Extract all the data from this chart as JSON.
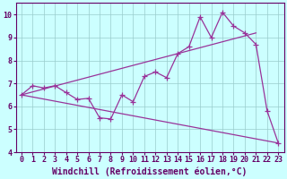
{
  "xlabel": "Windchill (Refroidissement éolien,°C)",
  "x_values": [
    0,
    1,
    2,
    3,
    4,
    5,
    6,
    7,
    8,
    9,
    10,
    11,
    12,
    13,
    14,
    15,
    16,
    17,
    18,
    19,
    20,
    21,
    22,
    23
  ],
  "line1_y": [
    6.5,
    6.9,
    6.8,
    6.9,
    6.6,
    6.3,
    6.35,
    5.5,
    5.45,
    6.5,
    6.2,
    7.3,
    7.5,
    7.25,
    8.3,
    8.6,
    9.9,
    9.0,
    10.1,
    9.5,
    9.2,
    8.7,
    5.8,
    4.4
  ],
  "line2_x": [
    0,
    21
  ],
  "line2_y": [
    6.5,
    9.2
  ],
  "line3_x": [
    0,
    23
  ],
  "line3_y": [
    6.5,
    4.4
  ],
  "line_color": "#993399",
  "bg_color": "#ccffff",
  "grid_color": "#99cccc",
  "ylim": [
    4,
    10.5
  ],
  "xlim": [
    -0.5,
    23.5
  ],
  "yticks": [
    4,
    5,
    6,
    7,
    8,
    9,
    10
  ],
  "xticks": [
    0,
    1,
    2,
    3,
    4,
    5,
    6,
    7,
    8,
    9,
    10,
    11,
    12,
    13,
    14,
    15,
    16,
    17,
    18,
    19,
    20,
    21,
    22,
    23
  ],
  "marker": "+",
  "marker_size": 4,
  "linewidth": 0.9,
  "tick_fontsize": 6,
  "xlabel_fontsize": 7
}
